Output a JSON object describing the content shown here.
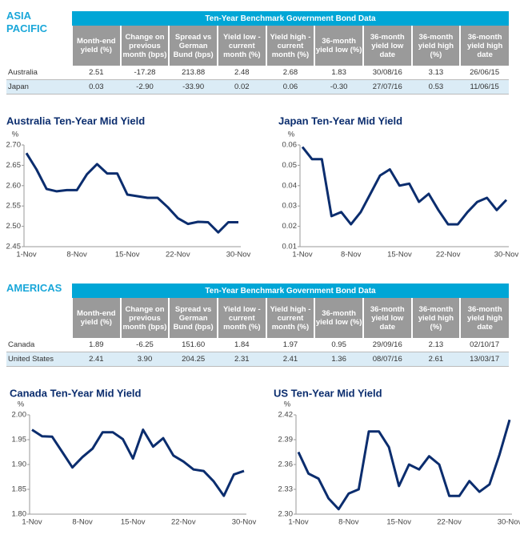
{
  "sections": [
    {
      "label": [
        "ASIA",
        "PACIFIC"
      ],
      "table": {
        "title": "Ten-Year Benchmark Government Bond Data",
        "headers": [
          "Month-end yield (%)",
          "Change on previous month (bps)",
          "Spread vs German Bund (bps)",
          "Yield low - current month (%)",
          "Yield high - current month (%)",
          "36-month yield low (%)",
          "36-month yield low date",
          "36-month yield high (%)",
          "36-month yield high date"
        ],
        "rows": [
          [
            "Australia",
            "2.51",
            "-17.28",
            "213.88",
            "2.48",
            "2.68",
            "1.83",
            "30/08/16",
            "3.13",
            "26/06/15"
          ],
          [
            "Japan",
            "0.03",
            "-2.90",
            "-33.90",
            "0.02",
            "0.06",
            "-0.30",
            "27/07/16",
            "0.53",
            "11/06/15"
          ]
        ]
      }
    },
    {
      "label": [
        "AMERICAS"
      ],
      "table": {
        "title": "Ten-Year Benchmark Government Bond Data",
        "headers": [
          "Month-end yield (%)",
          "Change on previous month (bps)",
          "Spread vs German Bund (bps)",
          "Yield low - current month (%)",
          "Yield high - current month (%)",
          "36-month yield low (%)",
          "36-month yield low date",
          "36-month yield high (%)",
          "36-month yield high date"
        ],
        "rows": [
          [
            "Canada",
            "1.89",
            "-6.25",
            "151.60",
            "1.84",
            "1.97",
            "0.95",
            "29/09/16",
            "2.13",
            "02/10/17"
          ],
          [
            "United States",
            "2.41",
            "3.90",
            "204.25",
            "2.31",
            "2.41",
            "1.36",
            "08/07/16",
            "2.61",
            "13/03/17"
          ]
        ]
      }
    }
  ],
  "chart_data": [
    {
      "type": "line",
      "title": "Australia Ten-Year Mid Yield",
      "y_label": "%",
      "color": "#0b2d6e",
      "categories": [
        "1-Nov",
        null,
        null,
        null,
        null,
        "8-Nov",
        null,
        null,
        null,
        null,
        "15-Nov",
        null,
        null,
        null,
        null,
        "22-Nov",
        null,
        null,
        null,
        null,
        null,
        "30-Nov"
      ],
      "values": [
        2.68,
        2.64,
        2.592,
        2.586,
        2.589,
        2.589,
        2.628,
        2.653,
        2.63,
        2.63,
        2.578,
        2.574,
        2.57,
        2.57,
        2.547,
        2.52,
        2.506,
        2.511,
        2.51,
        2.485,
        2.51,
        2.51
      ],
      "ylim": [
        2.45,
        2.7
      ],
      "yticks": [
        2.45,
        {
          "value": 2.5,
          "label": "2.50"
        },
        2.55,
        {
          "value": 2.6,
          "label": "2.60"
        },
        2.65,
        {
          "value": 2.7,
          "label": "2.70"
        }
      ]
    },
    {
      "type": "line",
      "title": "Japan Ten-Year Mid Yield",
      "y_label": "%",
      "color": "#0b2d6e",
      "categories": [
        "1-Nov",
        null,
        null,
        null,
        null,
        "8-Nov",
        null,
        null,
        null,
        null,
        "15-Nov",
        null,
        null,
        null,
        null,
        "22-Nov",
        null,
        null,
        null,
        null,
        null,
        "30-Nov"
      ],
      "values": [
        0.059,
        0.053,
        0.053,
        0.025,
        0.027,
        0.021,
        0.027,
        0.036,
        0.045,
        0.048,
        0.04,
        0.041,
        0.032,
        0.036,
        0.028,
        0.021,
        0.021,
        0.027,
        0.032,
        0.034,
        0.028,
        0.033
      ],
      "ylim": [
        0.01,
        0.06
      ],
      "yticks": [
        0.01,
        0.02,
        0.03,
        0.04,
        0.05,
        0.06
      ]
    },
    {
      "type": "line",
      "title": "Canada Ten-Year Mid Yield",
      "y_label": "%",
      "color": "#0b2d6e",
      "categories": [
        "1-Nov",
        null,
        null,
        null,
        null,
        "8-Nov",
        null,
        null,
        null,
        null,
        "15-Nov",
        null,
        null,
        null,
        null,
        "22-Nov",
        null,
        null,
        null,
        null,
        null,
        "30-Nov"
      ],
      "values": [
        1.97,
        1.957,
        1.956,
        1.925,
        1.894,
        1.915,
        1.932,
        1.965,
        1.965,
        1.951,
        1.912,
        1.97,
        1.936,
        1.953,
        1.918,
        1.906,
        1.89,
        1.887,
        1.866,
        1.837,
        1.88,
        1.887
      ],
      "ylim": [
        1.8,
        2.0
      ],
      "yticks": [
        {
          "value": 1.8,
          "label": "1.80"
        },
        1.85,
        {
          "value": 1.9,
          "label": "1.90"
        },
        1.95,
        {
          "value": 2.0,
          "label": "2.00"
        }
      ]
    },
    {
      "type": "line",
      "title": "US Ten-Year Mid Yield",
      "y_label": "%",
      "color": "#0b2d6e",
      "categories": [
        "1-Nov",
        null,
        null,
        null,
        null,
        "8-Nov",
        null,
        null,
        null,
        null,
        "15-Nov",
        null,
        null,
        null,
        null,
        "22-Nov",
        null,
        null,
        null,
        null,
        null,
        "30-Nov"
      ],
      "values": [
        2.375,
        2.349,
        2.343,
        2.319,
        2.306,
        2.325,
        2.33,
        2.4,
        2.4,
        2.381,
        2.334,
        2.36,
        2.354,
        2.37,
        2.36,
        2.322,
        2.322,
        2.34,
        2.327,
        2.336,
        2.372,
        2.414
      ],
      "ylim": [
        2.3,
        2.42
      ],
      "yticks": [
        {
          "value": 2.3,
          "label": "2.30"
        },
        2.33,
        2.36,
        2.39,
        2.42
      ]
    }
  ]
}
